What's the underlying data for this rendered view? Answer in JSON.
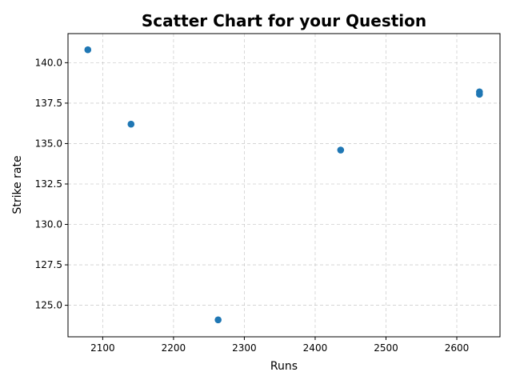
{
  "chart_data": {
    "type": "scatter",
    "title": "Scatter Chart for your Question",
    "xlabel": "Runs",
    "ylabel": "Strike rate",
    "xlim": [
      2051,
      2661
    ],
    "ylim": [
      123.05,
      141.8
    ],
    "xticks": [
      2100,
      2200,
      2300,
      2400,
      2500,
      2600
    ],
    "yticks": [
      125.0,
      127.5,
      130.0,
      132.5,
      135.0,
      137.5,
      140.0
    ],
    "xtick_labels": [
      "2100",
      "2200",
      "2300",
      "2400",
      "2500",
      "2600"
    ],
    "ytick_labels": [
      "125.0",
      "127.5",
      "130.0",
      "132.5",
      "135.0",
      "137.5",
      "140.0"
    ],
    "grid": true,
    "marker_color": "#1f77b4",
    "points": [
      {
        "x": 2079,
        "y": 140.8
      },
      {
        "x": 2140,
        "y": 136.2
      },
      {
        "x": 2263,
        "y": 124.1
      },
      {
        "x": 2436,
        "y": 134.6
      },
      {
        "x": 2632,
        "y": 138.2
      },
      {
        "x": 2632,
        "y": 138.05
      }
    ]
  }
}
